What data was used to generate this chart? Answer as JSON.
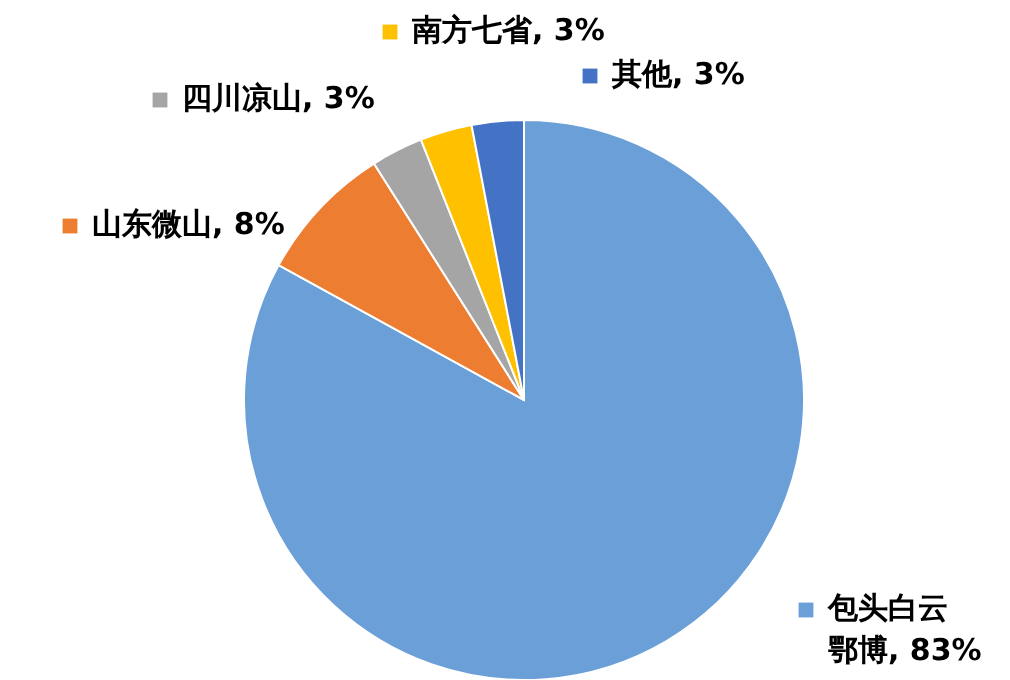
{
  "chart_data": {
    "type": "pie",
    "categories": [
      "包头白云鄂博",
      "山东微山",
      "四川凉山",
      "南方七省",
      "其他"
    ],
    "values": [
      83,
      8,
      3,
      3,
      3
    ],
    "colors": [
      "#6a9fd8",
      "#ed7d31",
      "#a5a5a5",
      "#ffc000",
      "#4472c4"
    ],
    "value_labels": [
      "83%",
      "8%",
      "3%",
      "3%",
      "3%"
    ],
    "legend": "top"
  }
}
